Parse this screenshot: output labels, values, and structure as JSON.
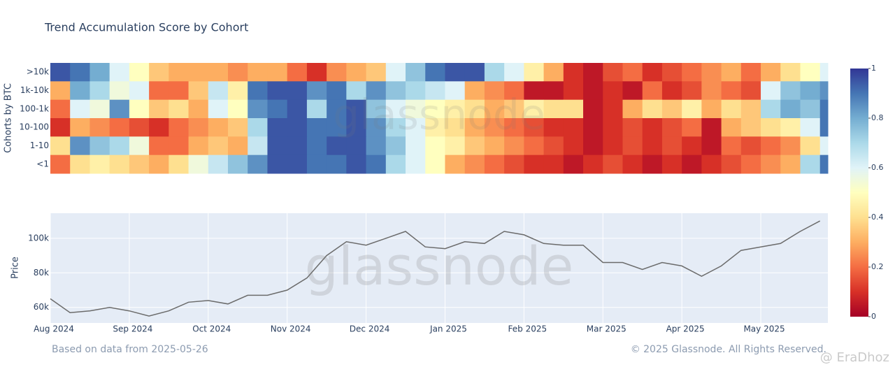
{
  "chart_data": [
    {
      "type": "heatmap",
      "title": "Trend Accumulation Score by Cohort",
      "y_label": "Cohorts by BTC",
      "categories": [
        ">10k",
        "1k-10k",
        "100-1k",
        "10-100",
        "1-10",
        "<1"
      ],
      "x": [
        0,
        0.25,
        0.5,
        0.75,
        1,
        1.25,
        1.5,
        1.75,
        2,
        2.25,
        2.5,
        2.75,
        3,
        3.25,
        3.5,
        3.75,
        4,
        4.25,
        4.5,
        4.75,
        5,
        5.25,
        5.5,
        5.75,
        6,
        6.25,
        6.5,
        6.75,
        7,
        7.25,
        7.5,
        7.75,
        8,
        8.25,
        8.5,
        8.75,
        9,
        9.25,
        9.5,
        9.75
      ],
      "xlim": [
        0,
        9.85
      ],
      "z": [
        [
          0.95,
          0.9,
          0.8,
          0.6,
          0.5,
          0.35,
          0.3,
          0.3,
          0.3,
          0.25,
          0.3,
          0.3,
          0.2,
          0.1,
          0.25,
          0.3,
          0.35,
          0.6,
          0.75,
          0.9,
          0.95,
          0.95,
          0.7,
          0.6,
          0.45,
          0.3,
          0.1,
          0.05,
          0.15,
          0.2,
          0.1,
          0.15,
          0.2,
          0.25,
          0.3,
          0.2,
          0.3,
          0.4,
          0.5,
          0.6
        ],
        [
          0.3,
          0.8,
          0.7,
          0.55,
          0.6,
          0.2,
          0.2,
          0.35,
          0.65,
          0.45,
          0.9,
          0.95,
          0.95,
          0.85,
          0.9,
          0.7,
          0.85,
          0.75,
          0.7,
          0.65,
          0.6,
          0.3,
          0.25,
          0.2,
          0.05,
          0.05,
          0.1,
          0.05,
          0.1,
          0.05,
          0.2,
          0.1,
          0.15,
          0.25,
          0.2,
          0.15,
          0.6,
          0.75,
          0.8,
          0.85
        ],
        [
          0.2,
          0.6,
          0.55,
          0.85,
          0.5,
          0.35,
          0.4,
          0.3,
          0.6,
          0.5,
          0.85,
          0.9,
          0.95,
          0.7,
          0.9,
          0.95,
          0.75,
          0.6,
          0.55,
          0.5,
          0.45,
          0.4,
          0.3,
          0.35,
          0.45,
          0.4,
          0.4,
          0.05,
          0.1,
          0.3,
          0.4,
          0.35,
          0.45,
          0.3,
          0.4,
          0.35,
          0.7,
          0.8,
          0.75,
          0.9
        ],
        [
          0.1,
          0.3,
          0.25,
          0.2,
          0.15,
          0.1,
          0.2,
          0.25,
          0.3,
          0.35,
          0.7,
          0.95,
          0.95,
          0.9,
          0.9,
          0.95,
          0.85,
          0.7,
          0.6,
          0.45,
          0.4,
          0.3,
          0.25,
          0.2,
          0.15,
          0.1,
          0.1,
          0.05,
          0.1,
          0.15,
          0.1,
          0.15,
          0.2,
          0.05,
          0.3,
          0.35,
          0.4,
          0.45,
          0.6,
          0.9
        ],
        [
          0.4,
          0.85,
          0.75,
          0.7,
          0.55,
          0.2,
          0.2,
          0.3,
          0.35,
          0.3,
          0.65,
          0.95,
          0.95,
          0.9,
          0.95,
          0.95,
          0.85,
          0.75,
          0.6,
          0.5,
          0.45,
          0.35,
          0.3,
          0.25,
          0.2,
          0.15,
          0.1,
          0.05,
          0.1,
          0.15,
          0.1,
          0.15,
          0.1,
          0.05,
          0.2,
          0.15,
          0.2,
          0.25,
          0.4,
          0.6
        ],
        [
          0.2,
          0.4,
          0.45,
          0.4,
          0.35,
          0.3,
          0.4,
          0.55,
          0.65,
          0.75,
          0.85,
          0.95,
          0.95,
          0.9,
          0.9,
          0.95,
          0.9,
          0.7,
          0.6,
          0.5,
          0.3,
          0.25,
          0.2,
          0.15,
          0.1,
          0.1,
          0.05,
          0.1,
          0.15,
          0.1,
          0.05,
          0.1,
          0.05,
          0.1,
          0.15,
          0.2,
          0.25,
          0.3,
          0.7,
          0.9
        ]
      ],
      "zlim": [
        0,
        1
      ],
      "zticks": [
        0,
        0.2,
        0.4,
        0.6,
        0.8,
        1
      ],
      "colorscale": [
        "#a50026",
        "#d73027",
        "#f46d43",
        "#fdae61",
        "#fee090",
        "#ffffbf",
        "#e0f3f8",
        "#abd9e9",
        "#74add1",
        "#4575b4",
        "#313695"
      ]
    },
    {
      "type": "line",
      "y_label": "Price",
      "color": "#6b6b6b",
      "grid": true,
      "background": "#e5ecf6",
      "x": [
        0,
        0.25,
        0.5,
        0.75,
        1,
        1.25,
        1.5,
        1.75,
        2,
        2.25,
        2.5,
        2.75,
        3,
        3.25,
        3.5,
        3.75,
        4,
        4.25,
        4.5,
        4.75,
        5,
        5.25,
        5.5,
        5.75,
        6,
        6.25,
        6.5,
        6.75,
        7,
        7.25,
        7.5,
        7.75,
        8,
        8.25,
        8.5,
        8.75,
        9,
        9.25,
        9.5,
        9.75
      ],
      "values": [
        65000,
        57000,
        58000,
        60000,
        58000,
        55000,
        58000,
        63000,
        64000,
        62000,
        67000,
        67000,
        70000,
        77000,
        90000,
        98000,
        96000,
        100000,
        104000,
        95000,
        94000,
        98000,
        97000,
        104000,
        102000,
        97000,
        96000,
        96000,
        86000,
        86000,
        82000,
        86000,
        84000,
        78000,
        84000,
        93000,
        95000,
        97000,
        104000,
        110000
      ],
      "xlim": [
        0,
        9.85
      ],
      "xticks": [
        {
          "value": 0,
          "label": "Aug 2024"
        },
        {
          "value": 1,
          "label": "Sep 2024"
        },
        {
          "value": 2,
          "label": "Oct 2024"
        },
        {
          "value": 3,
          "label": "Nov 2024"
        },
        {
          "value": 4,
          "label": "Dec 2024"
        },
        {
          "value": 5,
          "label": "Jan 2025"
        },
        {
          "value": 6,
          "label": "Feb 2025"
        },
        {
          "value": 7,
          "label": "Mar 2025"
        },
        {
          "value": 8,
          "label": "Apr 2025"
        },
        {
          "value": 9,
          "label": "May 2025"
        }
      ],
      "ylim": [
        51000,
        114500
      ],
      "yticks": [
        {
          "value": 60000,
          "label": "60k"
        },
        {
          "value": 80000,
          "label": "80k"
        },
        {
          "value": 100000,
          "label": "100k"
        }
      ]
    }
  ],
  "footer": {
    "note": "Based on data from 2025-05-26",
    "copyright": "© 2025 Glassnode. All Rights Reserved.",
    "watermark": "glassnode",
    "credit": "@ EraDhoz"
  }
}
